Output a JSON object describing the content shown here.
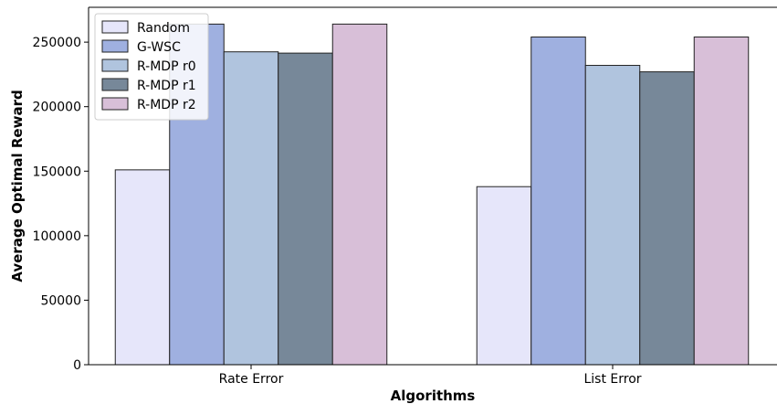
{
  "chart_data": {
    "type": "bar",
    "title": "",
    "xlabel": "Algorithms",
    "ylabel": "Average Optimal Reward",
    "categories": [
      "Rate Error",
      "List Error"
    ],
    "series": [
      {
        "name": "Random",
        "values": [
          151000,
          138000
        ],
        "color": "#e6e6fa"
      },
      {
        "name": "G-WSC",
        "values": [
          264000,
          254000
        ],
        "color": "#9fb0e0"
      },
      {
        "name": "R-MDP r0",
        "values": [
          242500,
          232000
        ],
        "color": "#b0c4de"
      },
      {
        "name": "R-MDP r1",
        "values": [
          241500,
          227000
        ],
        "color": "#778899"
      },
      {
        "name": "R-MDP r2",
        "values": [
          264000,
          254000
        ],
        "color": "#d8bfd8"
      }
    ],
    "ylim": [
      0,
      277000
    ],
    "yticks": [
      0,
      50000,
      100000,
      150000,
      200000,
      250000
    ],
    "ytick_labels": [
      "0",
      "50000",
      "100000",
      "150000",
      "200000",
      "250000"
    ],
    "grid": false,
    "legend_position": "top-left"
  }
}
